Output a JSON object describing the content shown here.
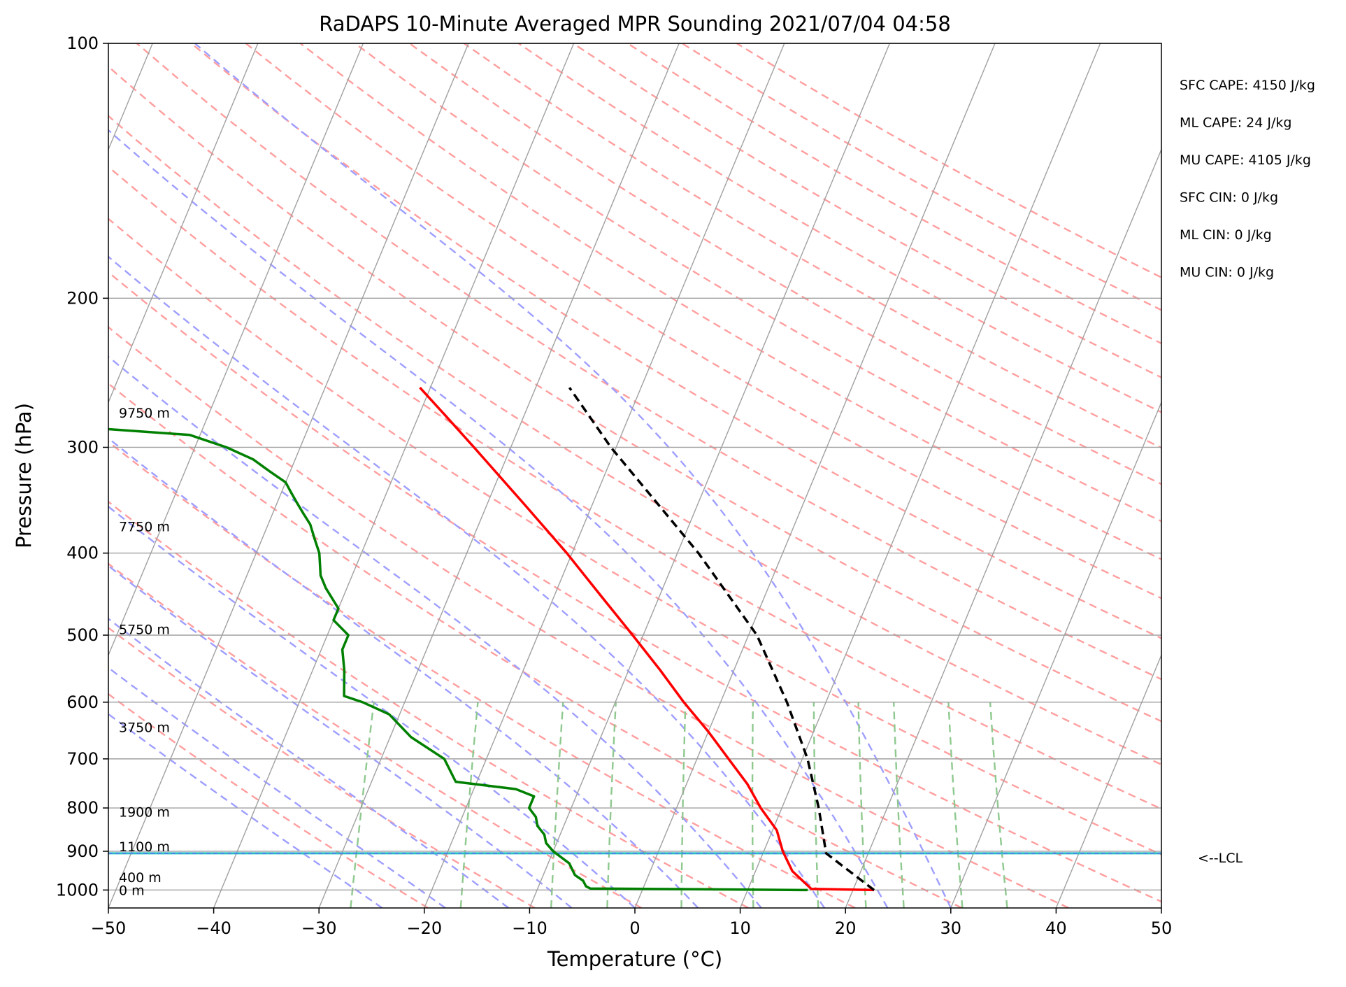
{
  "chart_data": {
    "type": "skew-t",
    "title": "RaDAPS 10-Minute Averaged MPR Sounding 2021/07/04 04:58",
    "xlabel": "Temperature (°C)",
    "ylabel": "Pressure (hPa)",
    "xlim": [
      -50,
      50
    ],
    "ylim": [
      1050,
      100
    ],
    "y_scale": "log",
    "grid": true,
    "x_ticks": [
      -50,
      -40,
      -30,
      -20,
      -10,
      0,
      10,
      20,
      30,
      40,
      50
    ],
    "x_tick_labels": [
      "−50",
      "−40",
      "−30",
      "−20",
      "−10",
      "0",
      "10",
      "20",
      "30",
      "40",
      "50"
    ],
    "y_ticks": [
      1000,
      900,
      800,
      700,
      600,
      500,
      400,
      300,
      200,
      100
    ],
    "y_tick_labels": [
      "1000",
      "900",
      "800",
      "700",
      "600",
      "500",
      "400",
      "300",
      "200",
      "100"
    ],
    "annotations": [
      "SFC CAPE: 4150 J/kg",
      "ML CAPE: 24 J/kg",
      "MU CAPE: 4105 J/kg",
      "SFC CIN: 0 J/kg",
      "ML CIN: 0 J/kg",
      "MU CIN: 0 J/kg"
    ],
    "height_labels": [
      {
        "text": "9750 m",
        "p": 273
      },
      {
        "text": "7750 m",
        "p": 372
      },
      {
        "text": "5750 m",
        "p": 492
      },
      {
        "text": "3750 m",
        "p": 642
      },
      {
        "text": "1900 m",
        "p": 808
      },
      {
        "text": "1100 m",
        "p": 888
      },
      {
        "text": "400 m",
        "p": 966
      },
      {
        "text": "0 m",
        "p": 1000
      }
    ],
    "lcl": {
      "label": "<--LCL",
      "p": 905
    },
    "series": [
      {
        "key": "temperature",
        "color": "#ff0000",
        "points": [
          [
            1000,
            22
          ],
          [
            997,
            16
          ],
          [
            950,
            13.5
          ],
          [
            900,
            11.8
          ],
          [
            850,
            10.4
          ],
          [
            800,
            8.0
          ],
          [
            750,
            5.8
          ],
          [
            700,
            3.0
          ],
          [
            650,
            0
          ],
          [
            600,
            -3.5
          ],
          [
            550,
            -7
          ],
          [
            500,
            -11
          ],
          [
            450,
            -15.5
          ],
          [
            400,
            -20.5
          ],
          [
            350,
            -26.5
          ],
          [
            300,
            -33.5
          ],
          [
            275,
            -37.5
          ],
          [
            255,
            -41
          ]
        ]
      },
      {
        "key": "dewpoint",
        "color": "#008000",
        "points": [
          [
            1000,
            15.7
          ],
          [
            996,
            -5
          ],
          [
            990,
            -5.5
          ],
          [
            975,
            -6
          ],
          [
            960,
            -7
          ],
          [
            930,
            -8
          ],
          [
            900,
            -10
          ],
          [
            880,
            -11
          ],
          [
            860,
            -11.5
          ],
          [
            840,
            -12.5
          ],
          [
            820,
            -13
          ],
          [
            800,
            -14
          ],
          [
            775,
            -14
          ],
          [
            760,
            -16
          ],
          [
            745,
            -22
          ],
          [
            700,
            -24
          ],
          [
            660,
            -28
          ],
          [
            620,
            -31
          ],
          [
            600,
            -34
          ],
          [
            590,
            -36
          ],
          [
            550,
            -37
          ],
          [
            520,
            -38
          ],
          [
            500,
            -38
          ],
          [
            480,
            -40
          ],
          [
            465,
            -40
          ],
          [
            440,
            -42
          ],
          [
            425,
            -43
          ],
          [
            400,
            -44
          ],
          [
            385,
            -45
          ],
          [
            370,
            -46
          ],
          [
            360,
            -47
          ],
          [
            350,
            -48
          ],
          [
            340,
            -49
          ],
          [
            330,
            -50
          ],
          [
            320,
            -52
          ],
          [
            310,
            -54
          ],
          [
            300,
            -57
          ],
          [
            290,
            -61
          ],
          [
            280,
            -79
          ],
          [
            270,
            -100
          ]
        ]
      },
      {
        "key": "parcel",
        "color": "#000000",
        "style": "dashed",
        "points": [
          [
            1000,
            22
          ],
          [
            905,
            16
          ],
          [
            800,
            13.5
          ],
          [
            700,
            10.5
          ],
          [
            600,
            6.3
          ],
          [
            500,
            0.8
          ],
          [
            400,
            -8
          ],
          [
            300,
            -20.5
          ],
          [
            255,
            -26.8
          ]
        ]
      }
    ],
    "colors": {
      "isotherm": "#a0a0a0",
      "dry_adiabat": "#ff9e9e",
      "moist_adiabat": "#9e9eff",
      "mixing_ratio": "#8fc98f",
      "lcl_line": "#2ac0c0"
    }
  }
}
